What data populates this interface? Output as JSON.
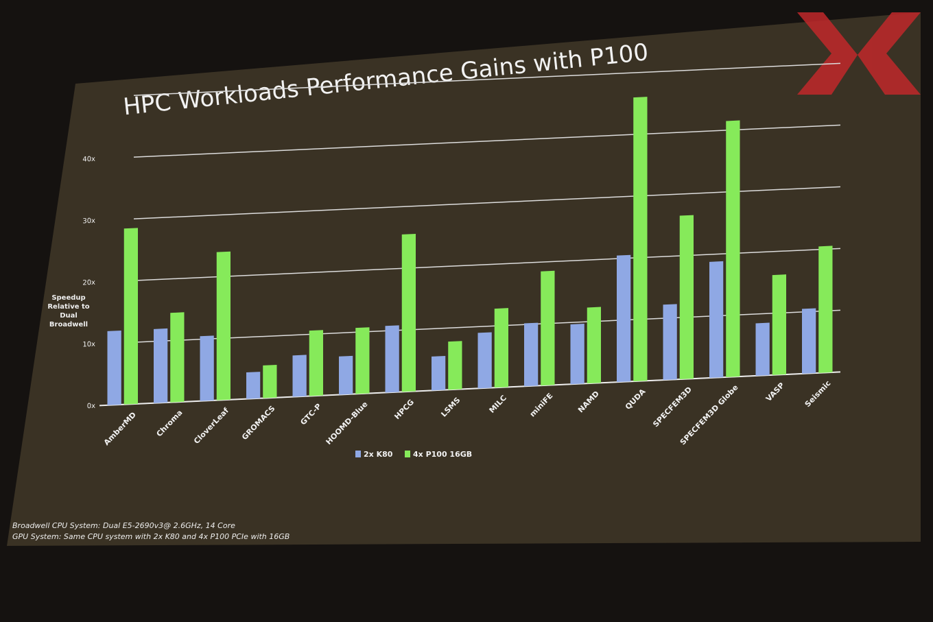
{
  "chart_data": {
    "type": "bar",
    "title": "HPC Workloads Performance Gains with P100",
    "y_label": "Speedup Relative to Dual Broadwell",
    "categories": [
      "AmberMD",
      "Chroma",
      "CloverLeaf",
      "GROMACS",
      "GTC-P",
      "HOOMD-Blue",
      "HPCG",
      "LSMS",
      "MILC",
      "miniFE",
      "NAMD",
      "QUDA",
      "SPECFEM3D",
      "SPECFEM3D Globe",
      "VASP",
      "Seismic"
    ],
    "series": [
      {
        "name": "2x K80",
        "color": "#8fa8e4",
        "values": [
          12,
          12,
          10.5,
          4.3,
          6.7,
          6.2,
          10.8,
          5.5,
          9,
          10.2,
          9.7,
          20.5,
          12.2,
          18.8,
          8.5,
          10.5
        ]
      },
      {
        "name": "4x P100 16GB",
        "color": "#86ea5a",
        "values": [
          28.5,
          14.5,
          24,
          5.3,
          10.6,
          10.7,
          25.5,
          7.8,
          12.8,
          18.5,
          12.3,
          46,
          26.5,
          41.5,
          16.2,
          20.5
        ]
      }
    ],
    "ylim": [
      0,
      50
    ],
    "yticks": [
      {
        "value": 0,
        "label": "0x"
      },
      {
        "value": 10,
        "label": "10x"
      },
      {
        "value": 20,
        "label": "20x"
      },
      {
        "value": 30,
        "label": "30x"
      },
      {
        "value": 40,
        "label": "40x"
      }
    ],
    "grid": true,
    "footnotes": [
      "Broadwell CPU System: Dual E5-2690v3@ 2.6GHz, 14 Core",
      "GPU System: Same CPU system with 2x K80 and 4x P100 PCIe with 16GB"
    ]
  }
}
